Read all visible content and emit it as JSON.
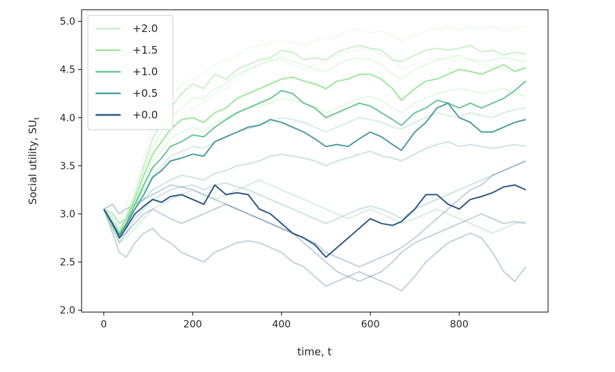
{
  "chart_data": {
    "type": "line",
    "title": "",
    "xlabel": "time, t",
    "ylabel": "Social utility, SU",
    "ylabel_subscript": "t",
    "xlim": [
      -50,
      1000
    ],
    "ylim": [
      1.98,
      5.12
    ],
    "x_ticks": [
      0,
      200,
      400,
      600,
      800
    ],
    "x_tick_labels": [
      "0",
      "200",
      "400",
      "600",
      "800"
    ],
    "y_ticks": [
      2.0,
      2.5,
      3.0,
      3.5,
      4.0,
      4.5,
      5.0
    ],
    "y_tick_labels": [
      "2.0",
      "2.5",
      "3.0",
      "3.5",
      "4.0",
      "4.5",
      "5.0"
    ],
    "grid": false,
    "legend_position": "top-left",
    "x": [
      0,
      20,
      35,
      50,
      70,
      90,
      110,
      130,
      150,
      175,
      200,
      225,
      250,
      275,
      300,
      325,
      350,
      375,
      400,
      425,
      450,
      475,
      500,
      525,
      550,
      575,
      600,
      625,
      650,
      670,
      700,
      725,
      750,
      775,
      800,
      825,
      850,
      875,
      900,
      925,
      950
    ],
    "series": [
      {
        "name": "+2.0",
        "color": "#c9f2c9",
        "values": [
          3.05,
          2.95,
          2.82,
          2.95,
          3.2,
          3.5,
          3.78,
          3.95,
          4.1,
          4.25,
          4.35,
          4.3,
          4.45,
          4.4,
          4.5,
          4.55,
          4.6,
          4.62,
          4.7,
          4.68,
          4.6,
          4.62,
          4.6,
          4.68,
          4.72,
          4.75,
          4.72,
          4.7,
          4.6,
          4.58,
          4.65,
          4.7,
          4.72,
          4.7,
          4.72,
          4.75,
          4.68,
          4.7,
          4.65,
          4.68,
          4.66
        ]
      },
      {
        "name": "+1.5",
        "color": "#9de89a",
        "values": [
          3.05,
          2.9,
          2.8,
          2.95,
          3.15,
          3.4,
          3.62,
          3.75,
          3.88,
          3.98,
          4.0,
          3.95,
          4.05,
          4.1,
          4.2,
          4.25,
          4.3,
          4.35,
          4.4,
          4.42,
          4.38,
          4.35,
          4.3,
          4.38,
          4.4,
          4.45,
          4.45,
          4.4,
          4.3,
          4.18,
          4.3,
          4.38,
          4.4,
          4.45,
          4.5,
          4.48,
          4.45,
          4.5,
          4.55,
          4.48,
          4.52
        ]
      },
      {
        "name": "+1.0",
        "color": "#6cc497",
        "values": [
          3.05,
          2.88,
          2.78,
          2.9,
          3.1,
          3.3,
          3.48,
          3.58,
          3.7,
          3.75,
          3.82,
          3.8,
          3.9,
          3.98,
          4.05,
          4.1,
          4.15,
          4.2,
          4.28,
          4.25,
          4.15,
          4.1,
          4.0,
          4.05,
          4.1,
          4.15,
          4.12,
          4.05,
          3.98,
          3.92,
          4.05,
          4.1,
          4.18,
          4.15,
          4.1,
          4.15,
          4.1,
          4.15,
          4.2,
          4.28,
          4.38
        ]
      },
      {
        "name": "+0.5",
        "color": "#4d9c9e",
        "values": [
          3.05,
          2.9,
          2.78,
          2.88,
          3.05,
          3.2,
          3.38,
          3.45,
          3.55,
          3.58,
          3.62,
          3.6,
          3.75,
          3.8,
          3.85,
          3.9,
          3.92,
          3.98,
          3.95,
          3.9,
          3.85,
          3.78,
          3.7,
          3.72,
          3.7,
          3.78,
          3.85,
          3.8,
          3.72,
          3.66,
          3.85,
          3.95,
          4.1,
          4.15,
          4.0,
          3.95,
          3.85,
          3.85,
          3.9,
          3.95,
          3.98
        ]
      },
      {
        "name": "+0.0",
        "color": "#2c5880",
        "values": [
          3.05,
          2.9,
          2.75,
          2.85,
          3.0,
          3.08,
          3.15,
          3.12,
          3.18,
          3.2,
          3.15,
          3.1,
          3.3,
          3.2,
          3.22,
          3.2,
          3.05,
          3.0,
          2.9,
          2.8,
          2.75,
          2.68,
          2.55,
          2.65,
          2.75,
          2.85,
          2.95,
          2.9,
          2.88,
          2.92,
          3.05,
          3.2,
          3.2,
          3.1,
          3.05,
          3.15,
          3.18,
          3.22,
          3.28,
          3.3,
          3.25
        ]
      }
    ],
    "background_traces": [
      {
        "color": "#c9f2c9",
        "values": [
          3.05,
          3.1,
          2.95,
          3.1,
          3.3,
          3.6,
          3.9,
          4.05,
          4.2,
          4.35,
          4.4,
          4.45,
          4.55,
          4.6,
          4.65,
          4.72,
          4.75,
          4.78,
          4.8,
          4.78,
          4.75,
          4.8,
          4.82,
          4.85,
          4.9,
          4.92,
          4.88,
          4.9,
          4.85,
          4.8,
          4.85,
          4.9,
          4.92,
          4.95,
          4.9,
          4.95,
          4.92,
          4.95,
          4.9,
          4.93,
          4.95
        ]
      },
      {
        "color": "#c9f2c9",
        "values": [
          3.05,
          2.85,
          2.7,
          2.85,
          3.1,
          3.35,
          3.6,
          3.7,
          3.85,
          3.95,
          4.1,
          4.15,
          4.25,
          4.3,
          4.4,
          4.5,
          4.55,
          4.58,
          4.6,
          4.55,
          4.5,
          4.55,
          4.6,
          4.65,
          4.68,
          4.7,
          4.72,
          4.65,
          4.6,
          4.5,
          4.55,
          4.6,
          4.62,
          4.6,
          4.58,
          4.6,
          4.55,
          4.52,
          4.5,
          4.48,
          4.5
        ]
      },
      {
        "color": "#9de89a",
        "values": [
          3.05,
          3.0,
          2.9,
          3.0,
          3.2,
          3.45,
          3.7,
          3.85,
          4.0,
          4.1,
          4.2,
          4.2,
          4.3,
          4.35,
          4.45,
          4.5,
          4.55,
          4.6,
          4.62,
          4.58,
          4.55,
          4.5,
          4.48,
          4.55,
          4.6,
          4.62,
          4.6,
          4.55,
          4.45,
          4.4,
          4.5,
          4.55,
          4.6,
          4.62,
          4.65,
          4.6,
          4.58,
          4.6,
          4.62,
          4.6,
          4.58
        ]
      },
      {
        "color": "#9de89a",
        "values": [
          3.05,
          2.88,
          2.75,
          2.9,
          3.05,
          3.3,
          3.55,
          3.65,
          3.78,
          3.85,
          3.9,
          3.85,
          3.95,
          4.0,
          4.05,
          4.1,
          4.12,
          4.15,
          4.2,
          4.18,
          4.15,
          4.12,
          4.05,
          4.1,
          4.15,
          4.2,
          4.22,
          4.18,
          4.1,
          4.05,
          4.15,
          4.2,
          4.25,
          4.28,
          4.3,
          4.28,
          4.25,
          4.28,
          4.3,
          4.25,
          4.22
        ]
      },
      {
        "color": "#6cc497",
        "values": [
          3.05,
          2.95,
          2.85,
          2.95,
          3.1,
          3.25,
          3.4,
          3.5,
          3.6,
          3.65,
          3.7,
          3.68,
          3.75,
          3.8,
          3.85,
          3.88,
          3.92,
          3.95,
          4.0,
          3.98,
          3.95,
          3.9,
          3.85,
          3.9,
          3.95,
          4.0,
          3.98,
          3.95,
          3.9,
          3.88,
          3.95,
          4.0,
          4.05,
          4.02,
          4.0,
          4.05,
          4.02,
          4.0,
          4.05,
          4.08,
          4.1
        ]
      },
      {
        "color": "#4d9c9e",
        "values": [
          3.05,
          3.0,
          2.9,
          2.95,
          3.05,
          3.15,
          3.25,
          3.3,
          3.35,
          3.4,
          3.38,
          3.35,
          3.42,
          3.45,
          3.5,
          3.52,
          3.55,
          3.6,
          3.62,
          3.6,
          3.58,
          3.55,
          3.5,
          3.55,
          3.58,
          3.62,
          3.65,
          3.6,
          3.58,
          3.55,
          3.62,
          3.68,
          3.72,
          3.75,
          3.7,
          3.72,
          3.7,
          3.68,
          3.7,
          3.72,
          3.7
        ]
      },
      {
        "color": "#4d9c9e",
        "values": [
          3.05,
          2.85,
          2.7,
          2.8,
          2.95,
          3.05,
          3.15,
          3.2,
          3.25,
          3.28,
          3.3,
          3.25,
          3.3,
          3.32,
          3.28,
          3.25,
          3.2,
          3.15,
          3.1,
          3.05,
          3.0,
          2.95,
          2.9,
          2.95,
          3.0,
          3.05,
          3.08,
          3.05,
          3.0,
          2.95,
          3.05,
          3.1,
          3.15,
          3.2,
          3.25,
          3.3,
          3.35,
          3.4,
          3.45,
          3.5,
          3.55
        ]
      },
      {
        "color": "#2c5880",
        "values": [
          3.05,
          2.8,
          2.6,
          2.55,
          2.7,
          2.8,
          2.85,
          2.75,
          2.7,
          2.6,
          2.55,
          2.5,
          2.6,
          2.65,
          2.7,
          2.72,
          2.7,
          2.65,
          2.6,
          2.5,
          2.45,
          2.35,
          2.25,
          2.3,
          2.35,
          2.4,
          2.35,
          2.3,
          2.25,
          2.2,
          2.35,
          2.5,
          2.6,
          2.7,
          2.75,
          2.8,
          2.75,
          2.6,
          2.4,
          2.3,
          2.45
        ]
      },
      {
        "color": "#2c5880",
        "values": [
          3.05,
          2.9,
          2.75,
          2.8,
          2.9,
          3.0,
          3.05,
          3.0,
          2.95,
          2.9,
          2.95,
          3.0,
          3.05,
          3.1,
          3.05,
          3.0,
          2.95,
          2.9,
          2.85,
          2.8,
          2.75,
          2.7,
          2.6,
          2.55,
          2.5,
          2.45,
          2.5,
          2.55,
          2.6,
          2.65,
          2.75,
          2.85,
          2.95,
          3.05,
          3.15,
          3.25,
          3.3,
          3.4,
          3.45,
          3.5,
          3.55
        ]
      },
      {
        "color": "#2c5880",
        "values": [
          3.05,
          3.1,
          3.0,
          3.05,
          3.1,
          3.15,
          3.2,
          3.25,
          3.3,
          3.28,
          3.25,
          3.2,
          3.15,
          3.1,
          3.05,
          3.0,
          2.95,
          2.9,
          2.85,
          2.8,
          2.7,
          2.6,
          2.5,
          2.4,
          2.35,
          2.3,
          2.35,
          2.4,
          2.5,
          2.6,
          2.7,
          2.75,
          2.8,
          2.85,
          2.9,
          2.95,
          3.0,
          2.95,
          2.9,
          2.92,
          2.9
        ]
      },
      {
        "color": "#6cc497",
        "values": [
          3.05,
          2.85,
          2.7,
          2.75,
          2.85,
          2.95,
          3.05,
          3.1,
          3.15,
          3.2,
          3.25,
          3.2,
          3.15,
          3.2,
          3.25,
          3.3,
          3.35,
          3.3,
          3.25,
          3.2,
          3.15,
          3.1,
          3.05,
          3.0,
          2.95,
          3.0,
          3.05,
          3.0,
          2.95,
          2.9,
          2.95,
          3.0,
          3.05,
          3.0,
          2.95,
          2.9,
          2.85,
          2.8,
          2.85,
          2.9,
          2.92
        ]
      }
    ]
  }
}
